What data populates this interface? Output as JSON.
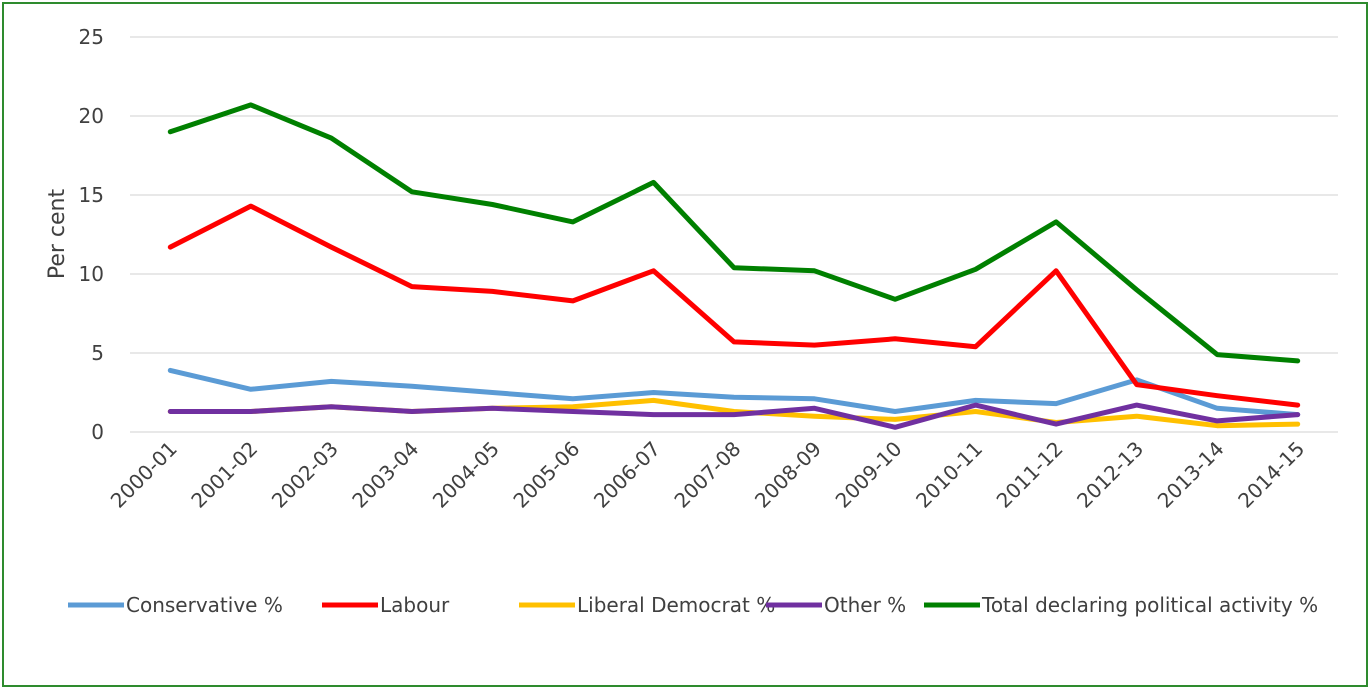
{
  "chart_data": {
    "type": "line",
    "title": "",
    "xlabel": "",
    "ylabel": "Per cent",
    "ylim": [
      0,
      25
    ],
    "yticks": [
      0,
      5,
      10,
      15,
      20,
      25
    ],
    "grid": true,
    "legend_position": "bottom",
    "categories": [
      "2000-01",
      "2001-02",
      "2002-03",
      "2003-04",
      "2004-05",
      "2005-06",
      "2006-07",
      "2007-08",
      "2008-09",
      "2009-10",
      "2010-11",
      "2011-12",
      "2012-13",
      "2013-14",
      "2014-15"
    ],
    "series": [
      {
        "name": "Conservative %",
        "color": "#5b9bd5",
        "values": [
          3.9,
          2.7,
          3.2,
          2.9,
          2.5,
          2.1,
          2.5,
          2.2,
          2.1,
          1.3,
          2.0,
          1.8,
          3.3,
          1.5,
          1.1
        ]
      },
      {
        "name": "Labour",
        "color": "#ff0000",
        "values": [
          11.7,
          14.3,
          11.7,
          9.2,
          8.9,
          8.3,
          10.2,
          5.7,
          5.5,
          5.9,
          5.4,
          10.2,
          3.0,
          2.3,
          1.7
        ]
      },
      {
        "name": "Liberal Democrat %",
        "color": "#ffc000",
        "values": [
          1.3,
          1.3,
          1.6,
          1.3,
          1.5,
          1.6,
          2.0,
          1.3,
          1.0,
          0.8,
          1.3,
          0.6,
          1.0,
          0.4,
          0.5
        ]
      },
      {
        "name": "Other %",
        "color": "#7030a0",
        "values": [
          1.3,
          1.3,
          1.6,
          1.3,
          1.5,
          1.3,
          1.1,
          1.1,
          1.5,
          0.3,
          1.7,
          0.5,
          1.7,
          0.7,
          1.1
        ]
      },
      {
        "name": "Total declaring political activity %",
        "color": "#008000",
        "values": [
          19.0,
          20.7,
          18.6,
          15.2,
          14.4,
          13.3,
          15.8,
          10.4,
          10.2,
          8.4,
          10.3,
          13.3,
          9.0,
          4.9,
          4.5
        ]
      }
    ]
  }
}
